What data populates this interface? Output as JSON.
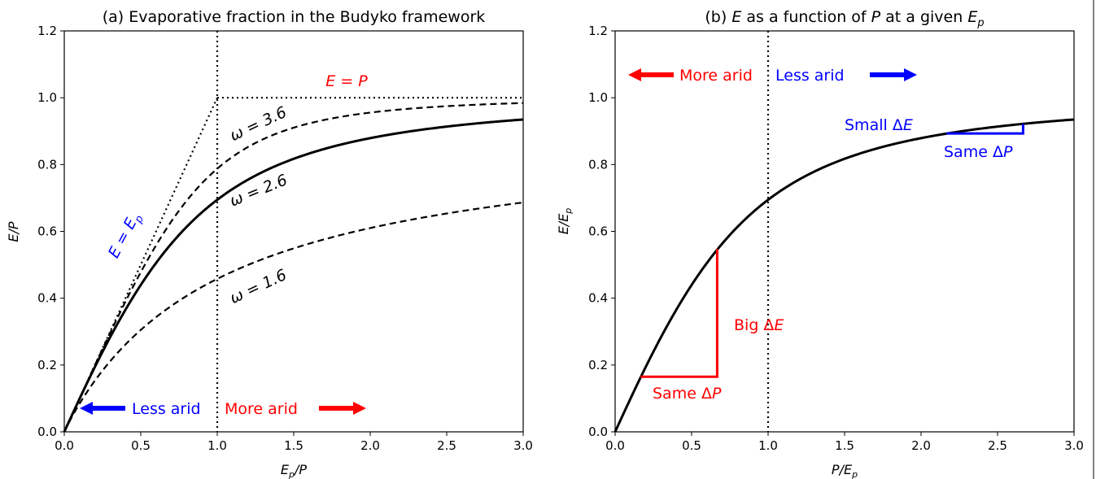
{
  "chart_data": [
    {
      "type": "line",
      "title": "(a) Evaporative fraction in the Budyko framework",
      "xlabel": "E_p/P",
      "ylabel": "E/P",
      "xlim": [
        0,
        3.0
      ],
      "ylim": [
        0,
        1.2
      ],
      "xticks": [
        "0.0",
        "0.5",
        "1.0",
        "1.5",
        "2.0",
        "2.5",
        "3.0"
      ],
      "yticks": [
        "0.0",
        "0.2",
        "0.4",
        "0.6",
        "0.8",
        "1.0",
        "1.2"
      ],
      "grid": false,
      "series": [
        {
          "name": "ω = 3.6",
          "style": "dashed",
          "omega": 3.6
        },
        {
          "name": "ω = 2.6",
          "style": "solid",
          "omega": 2.6
        },
        {
          "name": "ω = 1.6",
          "style": "dashed",
          "omega": 1.6
        },
        {
          "name": "E = E_p",
          "style": "dotted",
          "x": [
            0,
            1.0
          ],
          "y": [
            0,
            1.0
          ]
        },
        {
          "name": "E = P",
          "style": "dotted",
          "x": [
            1.0,
            3.0
          ],
          "y": [
            1.0,
            1.0
          ]
        }
      ],
      "vline_x": 1.0,
      "annotations": {
        "e_eq_p": "E = P",
        "e_eq_ep": "E = E_p",
        "omega_36": "ω = 3.6",
        "omega_26": "ω = 2.6",
        "omega_16": "ω = 1.6",
        "less_arid": "Less arid",
        "more_arid": "More arid"
      },
      "colors": {
        "red": "#ff0000",
        "blue": "#0000ff",
        "black": "#000000"
      }
    },
    {
      "type": "line",
      "title": "(b) E as a function of P at a given E_p",
      "xlabel": "P/E_p",
      "ylabel": "E/E_p",
      "xlim": [
        0,
        3.0
      ],
      "ylim": [
        0,
        1.2
      ],
      "xticks": [
        "0.0",
        "0.5",
        "1.0",
        "1.5",
        "2.0",
        "2.5",
        "3.0"
      ],
      "yticks": [
        "0.0",
        "0.2",
        "0.4",
        "0.6",
        "0.8",
        "1.0",
        "1.2"
      ],
      "grid": false,
      "series": [
        {
          "style": "solid",
          "omega": 2.6
        }
      ],
      "vline_x": 1.0,
      "big_step": {
        "x": [
          0.167,
          0.667
        ],
        "y": [
          0.165,
          0.547
        ]
      },
      "small_step": {
        "x": [
          2.167,
          2.667
        ],
        "y": [
          0.893,
          0.922
        ]
      },
      "annotations": {
        "more_arid": "More arid",
        "less_arid": "Less arid",
        "small_dE": "Small ΔE",
        "same_dP_top": "Same ΔP",
        "big_dE": "Big  ΔE",
        "same_dP_bottom": "Same ΔP"
      },
      "colors": {
        "red": "#ff0000",
        "blue": "#0000ff",
        "black": "#000000"
      }
    }
  ]
}
